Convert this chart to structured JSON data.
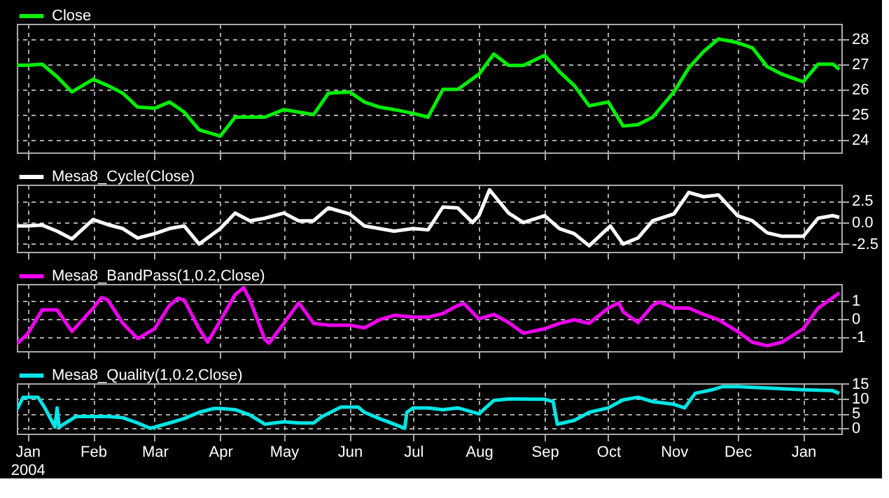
{
  "chart_data": [
    {
      "type": "line",
      "legend": "top left",
      "grid": true,
      "tick_labels": "y",
      "xlim": [
        "2003-12-27",
        "2005-01-19"
      ],
      "ylim": [
        23.5,
        28.6
      ],
      "yticks": [
        24,
        25,
        26,
        27,
        28
      ],
      "xticks": [
        {
          "value": "2004-01-01",
          "label": null
        },
        {
          "value": "2004-02-01",
          "label": null
        },
        {
          "value": "2004-03-01",
          "label": null
        },
        {
          "value": "2004-04-01",
          "label": null
        },
        {
          "value": "2004-05-01",
          "label": null
        },
        {
          "value": "2004-06-01",
          "label": null
        },
        {
          "value": "2004-07-01",
          "label": null
        },
        {
          "value": "2004-08-01",
          "label": null
        },
        {
          "value": "2004-09-01",
          "label": null
        },
        {
          "value": "2004-10-01",
          "label": null
        },
        {
          "value": "2004-11-01",
          "label": null
        },
        {
          "value": "2004-12-01",
          "label": null
        },
        {
          "value": "2005-01-01",
          "label": null
        }
      ],
      "x": [
        "2003-12-27",
        "2004-01-01",
        "2004-01-08",
        "2004-01-15",
        "2004-01-22",
        "2004-02-01",
        "2004-02-08",
        "2004-02-15",
        "2004-02-22",
        "2004-03-01",
        "2004-03-08",
        "2004-03-15",
        "2004-03-22",
        "2004-04-01",
        "2004-04-08",
        "2004-04-15",
        "2004-04-22",
        "2004-05-01",
        "2004-05-08",
        "2004-05-15",
        "2004-05-22",
        "2004-06-01",
        "2004-06-08",
        "2004-06-15",
        "2004-06-22",
        "2004-07-01",
        "2004-07-08",
        "2004-07-15",
        "2004-07-22",
        "2004-08-01",
        "2004-08-08",
        "2004-08-15",
        "2004-08-22",
        "2004-09-01",
        "2004-09-08",
        "2004-09-15",
        "2004-09-22",
        "2004-10-01",
        "2004-10-08",
        "2004-10-15",
        "2004-10-22",
        "2004-11-01",
        "2004-11-08",
        "2004-11-15",
        "2004-11-22",
        "2004-12-01",
        "2004-12-08",
        "2004-12-15",
        "2004-12-22",
        "2005-01-01",
        "2005-01-08",
        "2005-01-15",
        "2005-01-18"
      ],
      "series": [
        {
          "name": "Close",
          "color": "#00ee00",
          "values": [
            26.96,
            26.96,
            27.0,
            26.5,
            25.9,
            26.4,
            26.15,
            25.85,
            25.3,
            25.25,
            25.5,
            25.1,
            24.4,
            24.15,
            24.9,
            24.9,
            24.9,
            25.2,
            25.1,
            25.0,
            25.85,
            25.9,
            25.5,
            25.3,
            25.2,
            25.05,
            24.9,
            26.0,
            26.0,
            26.6,
            27.4,
            26.95,
            26.95,
            27.35,
            26.7,
            26.15,
            25.35,
            25.5,
            24.55,
            24.6,
            24.9,
            25.9,
            26.85,
            27.5,
            28.0,
            27.85,
            27.65,
            26.9,
            26.6,
            26.3,
            27.0,
            27.0,
            26.8
          ]
        }
      ]
    },
    {
      "type": "line",
      "legend": "top left",
      "grid": true,
      "tick_labels": "y",
      "xlim": [
        "2003-12-27",
        "2005-01-19"
      ],
      "ylim": [
        -3.4,
        4.4
      ],
      "yticks": [
        {
          "value": -2.5,
          "label": "-2.5"
        },
        {
          "value": 0,
          "label": "0.0"
        },
        {
          "value": 2.5,
          "label": "2.5"
        }
      ],
      "xticks": [
        {
          "value": "2004-01-01",
          "label": null
        },
        {
          "value": "2004-02-01",
          "label": null
        },
        {
          "value": "2004-03-01",
          "label": null
        },
        {
          "value": "2004-04-01",
          "label": null
        },
        {
          "value": "2004-05-01",
          "label": null
        },
        {
          "value": "2004-06-01",
          "label": null
        },
        {
          "value": "2004-07-01",
          "label": null
        },
        {
          "value": "2004-08-01",
          "label": null
        },
        {
          "value": "2004-09-01",
          "label": null
        },
        {
          "value": "2004-10-01",
          "label": null
        },
        {
          "value": "2004-11-01",
          "label": null
        },
        {
          "value": "2004-12-01",
          "label": null
        },
        {
          "value": "2005-01-01",
          "label": null
        }
      ],
      "x": [
        "2003-12-27",
        "2004-01-01",
        "2004-01-08",
        "2004-01-15",
        "2004-01-22",
        "2004-02-01",
        "2004-02-08",
        "2004-02-15",
        "2004-02-22",
        "2004-03-01",
        "2004-03-08",
        "2004-03-15",
        "2004-03-22",
        "2004-04-01",
        "2004-04-08",
        "2004-04-15",
        "2004-04-22",
        "2004-05-01",
        "2004-05-08",
        "2004-05-15",
        "2004-05-22",
        "2004-06-01",
        "2004-06-08",
        "2004-06-15",
        "2004-06-22",
        "2004-07-01",
        "2004-07-08",
        "2004-07-15",
        "2004-07-22",
        "2004-07-29",
        "2004-08-01",
        "2004-08-06",
        "2004-08-08",
        "2004-08-15",
        "2004-08-22",
        "2004-09-01",
        "2004-09-08",
        "2004-09-15",
        "2004-09-22",
        "2004-10-02",
        "2004-10-08",
        "2004-10-15",
        "2004-10-22",
        "2004-11-01",
        "2004-11-08",
        "2004-11-15",
        "2004-11-22",
        "2004-12-01",
        "2004-12-08",
        "2004-12-15",
        "2004-12-22",
        "2005-01-01",
        "2005-01-08",
        "2005-01-15",
        "2005-01-18"
      ],
      "series": [
        {
          "name": "Mesa8_Cycle(Close)",
          "color": "#ffffff",
          "values": [
            -0.4,
            -0.4,
            -0.3,
            -1.0,
            -1.9,
            0.35,
            -0.25,
            -0.7,
            -1.8,
            -1.3,
            -0.7,
            -0.4,
            -2.5,
            -0.7,
            1.1,
            0.2,
            0.5,
            1.1,
            0.2,
            0.2,
            1.7,
            1.0,
            -0.4,
            -0.7,
            -1.0,
            -0.7,
            -0.85,
            1.8,
            1.7,
            0.0,
            0.8,
            3.8,
            3.2,
            1.1,
            0.0,
            0.8,
            -0.7,
            -1.3,
            -2.7,
            -0.4,
            -2.5,
            -1.8,
            0.2,
            1.0,
            3.5,
            3.0,
            3.2,
            0.8,
            0.2,
            -1.2,
            -1.6,
            -1.6,
            0.5,
            0.8,
            0.6
          ]
        }
      ]
    },
    {
      "type": "line",
      "legend": "top left",
      "grid": true,
      "tick_labels": "y",
      "xlim": [
        "2003-12-27",
        "2005-01-19"
      ],
      "ylim": [
        -1.8,
        1.95
      ],
      "yticks": [
        -1,
        0,
        1
      ],
      "xticks": [
        {
          "value": "2004-01-01",
          "label": null
        },
        {
          "value": "2004-02-01",
          "label": null
        },
        {
          "value": "2004-03-01",
          "label": null
        },
        {
          "value": "2004-04-01",
          "label": null
        },
        {
          "value": "2004-05-01",
          "label": null
        },
        {
          "value": "2004-06-01",
          "label": null
        },
        {
          "value": "2004-07-01",
          "label": null
        },
        {
          "value": "2004-08-01",
          "label": null
        },
        {
          "value": "2004-09-01",
          "label": null
        },
        {
          "value": "2004-10-01",
          "label": null
        },
        {
          "value": "2004-11-01",
          "label": null
        },
        {
          "value": "2004-12-01",
          "label": null
        },
        {
          "value": "2005-01-01",
          "label": null
        }
      ],
      "x": [
        "2003-12-27",
        "2004-01-01",
        "2004-01-08",
        "2004-01-15",
        "2004-01-22",
        "2004-02-01",
        "2004-02-05",
        "2004-02-08",
        "2004-02-15",
        "2004-02-22",
        "2004-03-01",
        "2004-03-08",
        "2004-03-12",
        "2004-03-15",
        "2004-03-22",
        "2004-03-26",
        "2004-04-01",
        "2004-04-08",
        "2004-04-12",
        "2004-04-15",
        "2004-04-22",
        "2004-04-24",
        "2004-05-01",
        "2004-05-08",
        "2004-05-15",
        "2004-05-22",
        "2004-06-01",
        "2004-06-08",
        "2004-06-15",
        "2004-06-22",
        "2004-07-01",
        "2004-07-08",
        "2004-07-15",
        "2004-07-22",
        "2004-07-25",
        "2004-08-01",
        "2004-08-08",
        "2004-08-15",
        "2004-08-22",
        "2004-09-01",
        "2004-09-08",
        "2004-09-15",
        "2004-09-22",
        "2004-10-01",
        "2004-10-06",
        "2004-10-08",
        "2004-10-15",
        "2004-10-22",
        "2004-10-25",
        "2004-11-01",
        "2004-11-08",
        "2004-11-15",
        "2004-11-22",
        "2004-12-01",
        "2004-12-08",
        "2004-12-15",
        "2004-12-22",
        "2005-01-01",
        "2005-01-08",
        "2005-01-15",
        "2005-01-18"
      ],
      "series": [
        {
          "name": "Mesa8_BandPass(1,0.2,Close)",
          "color": "#ee00ee",
          "values": [
            -1.4,
            -0.85,
            0.5,
            0.5,
            -0.7,
            0.6,
            1.2,
            1.05,
            -0.25,
            -1.1,
            -0.55,
            0.75,
            1.15,
            1.05,
            -0.55,
            -1.3,
            -0.1,
            1.35,
            1.75,
            1.05,
            -1.15,
            -1.35,
            -0.25,
            0.9,
            -0.25,
            -0.35,
            -0.35,
            -0.5,
            -0.05,
            0.2,
            0.1,
            0.1,
            0.3,
            0.75,
            0.85,
            0.0,
            0.25,
            -0.2,
            -0.8,
            -0.55,
            -0.25,
            -0.05,
            -0.25,
            0.6,
            0.9,
            0.4,
            -0.2,
            0.75,
            0.95,
            0.6,
            0.6,
            0.25,
            -0.05,
            -0.7,
            -1.3,
            -1.5,
            -1.3,
            -0.55,
            0.6,
            1.2,
            1.45
          ]
        }
      ]
    },
    {
      "type": "line",
      "legend": "top left",
      "grid": true,
      "xlim": [
        "2003-12-27",
        "2005-01-19"
      ],
      "ylim": [
        -1.8,
        15.2
      ],
      "yticks": [
        0,
        5,
        10,
        15
      ],
      "xticks": [
        {
          "value": "2004-01-01",
          "label": "Jan\n2004"
        },
        {
          "value": "2004-02-01",
          "label": "Feb"
        },
        {
          "value": "2004-03-01",
          "label": "Mar"
        },
        {
          "value": "2004-04-01",
          "label": "Apr"
        },
        {
          "value": "2004-05-01",
          "label": "May"
        },
        {
          "value": "2004-06-01",
          "label": "Jun"
        },
        {
          "value": "2004-07-01",
          "label": "Jul"
        },
        {
          "value": "2004-08-01",
          "label": "Aug"
        },
        {
          "value": "2004-09-01",
          "label": "Sep"
        },
        {
          "value": "2004-10-01",
          "label": "Oct"
        },
        {
          "value": "2004-11-01",
          "label": "Nov"
        },
        {
          "value": "2004-12-01",
          "label": "Dec"
        },
        {
          "value": "2005-01-01",
          "label": "Jan"
        }
      ],
      "x": [
        "2003-12-27",
        "2003-12-30",
        "2004-01-06",
        "2004-01-09",
        "2004-01-13",
        "2004-01-14",
        "2004-01-15",
        "2004-01-16",
        "2004-01-19",
        "2004-01-24",
        "2004-02-01",
        "2004-02-08",
        "2004-02-15",
        "2004-02-22",
        "2004-02-28",
        "2004-03-08",
        "2004-03-15",
        "2004-03-22",
        "2004-03-29",
        "2004-04-01",
        "2004-04-08",
        "2004-04-15",
        "2004-04-22",
        "2004-05-01",
        "2004-05-08",
        "2004-05-15",
        "2004-05-19",
        "2004-05-28",
        "2004-06-05",
        "2004-06-08",
        "2004-06-15",
        "2004-06-22",
        "2004-06-27",
        "2004-06-28",
        "2004-07-01",
        "2004-07-08",
        "2004-07-15",
        "2004-07-22",
        "2004-08-01",
        "2004-08-08",
        "2004-08-15",
        "2004-08-22",
        "2004-09-01",
        "2004-09-05",
        "2004-09-07",
        "2004-09-15",
        "2004-09-22",
        "2004-10-01",
        "2004-10-08",
        "2004-10-15",
        "2004-10-22",
        "2004-11-01",
        "2004-11-06",
        "2004-11-11",
        "2004-11-19",
        "2004-11-24",
        "2004-12-01",
        "2004-12-15",
        "2005-01-01",
        "2005-01-15",
        "2005-01-18"
      ],
      "series": [
        {
          "name": "Mesa8_Quality(1,0.2,Close)",
          "color": "#00e5e5",
          "values": [
            6.3,
            10.5,
            10.5,
            7.2,
            1.8,
            0.4,
            6.9,
            0.4,
            1.8,
            4.0,
            4.0,
            4.0,
            3.6,
            1.8,
            0.0,
            1.8,
            3.3,
            5.4,
            6.7,
            6.7,
            6.3,
            4.5,
            1.4,
            2.2,
            1.8,
            1.8,
            4.0,
            7.2,
            7.2,
            5.4,
            3.3,
            1.4,
            0.0,
            5.4,
            6.9,
            6.9,
            6.3,
            6.9,
            4.9,
            9.4,
            9.9,
            9.9,
            9.8,
            9.0,
            1.4,
            2.7,
            5.4,
            6.9,
            9.6,
            10.5,
            9.0,
            8.1,
            6.9,
            11.8,
            13.0,
            14.1,
            14.1,
            13.6,
            13.0,
            12.7,
            11.8
          ]
        }
      ]
    }
  ]
}
